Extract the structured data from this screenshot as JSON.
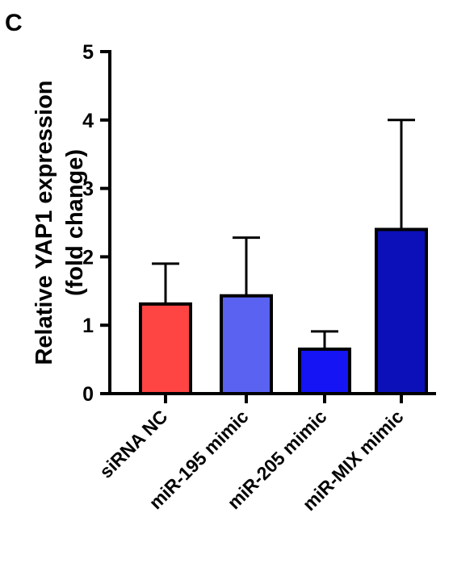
{
  "panel_label": "C",
  "chart_data": {
    "type": "bar",
    "categories": [
      "siRNA NC",
      "miR-195 mimic",
      "miR-205 mimic",
      "miR-MIX mimic"
    ],
    "values": [
      1.31,
      1.43,
      0.65,
      2.4
    ],
    "errors": [
      0.59,
      0.85,
      0.26,
      1.6
    ],
    "colors": [
      "#ff4444",
      "#5a62f2",
      "#1414f5",
      "#0c10b8"
    ],
    "ylabel_line1": "Relative YAP1 expression",
    "ylabel_line2": "(fold change)",
    "ylim": [
      0,
      5
    ],
    "yticks": [
      "0",
      "1",
      "2",
      "3",
      "4",
      "5"
    ],
    "grid": false
  }
}
